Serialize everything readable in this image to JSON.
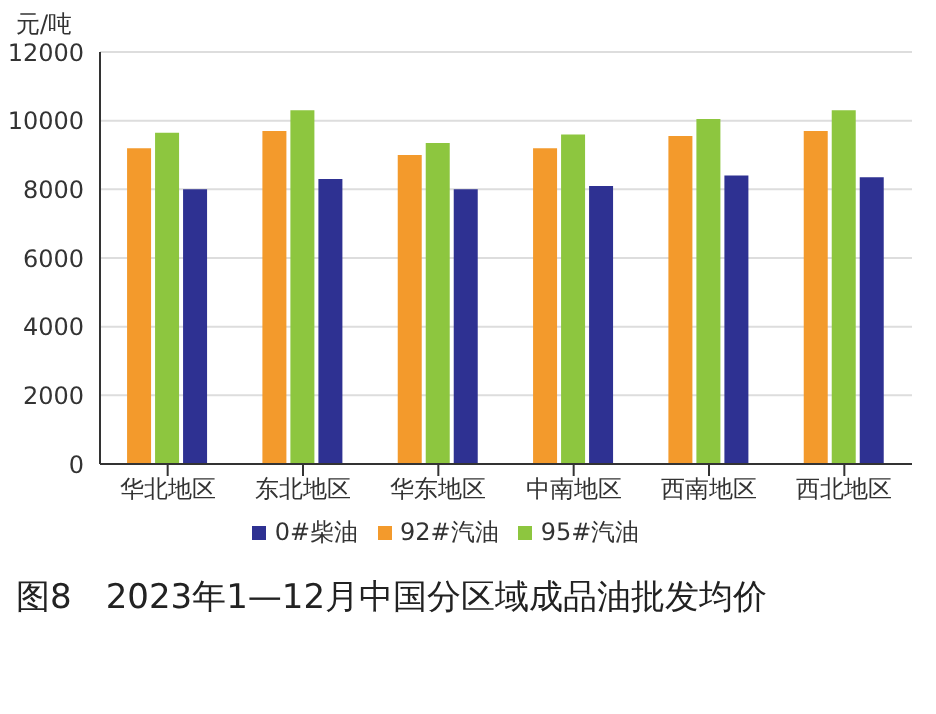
{
  "chart_data": {
    "type": "bar",
    "title": "图8　2023年1—12月中国分区域成品油批发均价",
    "ylabel": "元/吨",
    "categories": [
      "华北地区",
      "东北地区",
      "华东地区",
      "中南地区",
      "西南地区",
      "西北地区"
    ],
    "series": [
      {
        "name": "92#汽油",
        "color": "#f39a2c",
        "values": [
          9200,
          9700,
          9000,
          9200,
          9550,
          9700
        ]
      },
      {
        "name": "95#汽油",
        "color": "#8dc63f",
        "values": [
          9650,
          10300,
          9350,
          9600,
          10050,
          10300
        ]
      },
      {
        "name": "0#柴油",
        "color": "#2e3192",
        "values": [
          8000,
          8300,
          8000,
          8100,
          8400,
          8350
        ]
      }
    ],
    "ylim": [
      0,
      12000
    ],
    "yticks": [
      0,
      2000,
      4000,
      6000,
      8000,
      10000,
      12000
    ],
    "grid": "y",
    "legend": "bottom"
  }
}
